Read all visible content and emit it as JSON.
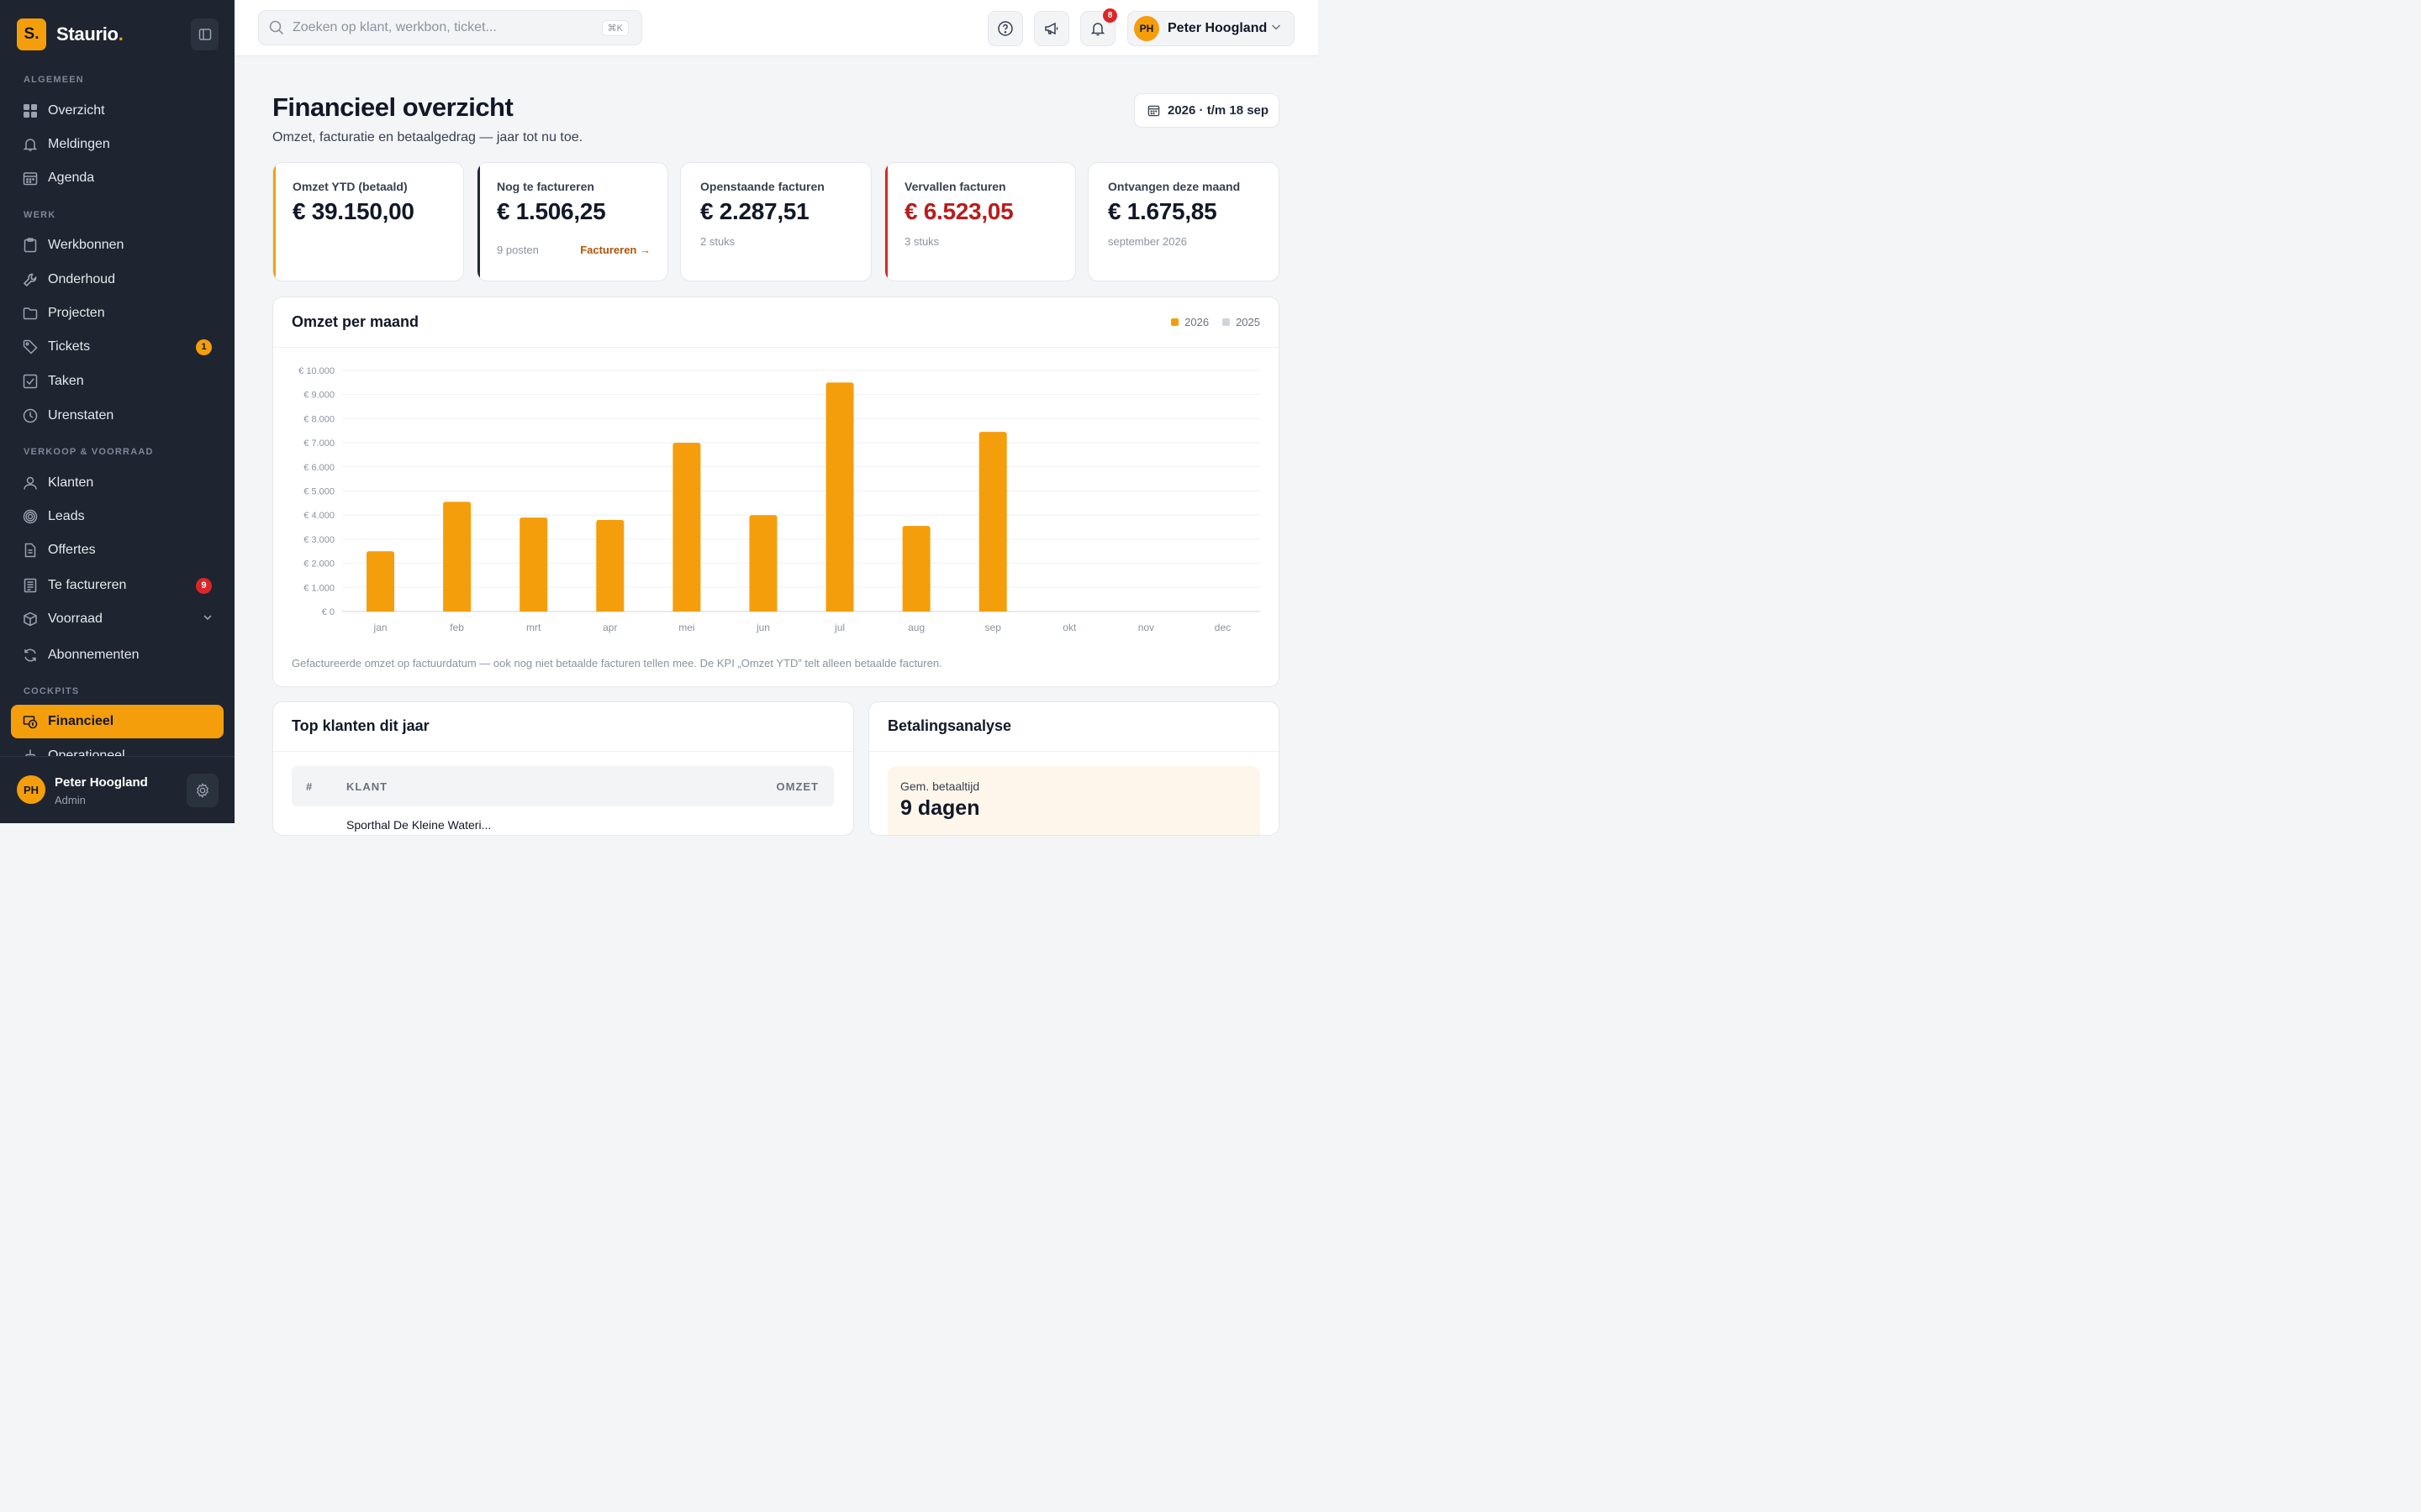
{
  "brand": {
    "logo_letter": "S.",
    "name": "Staurio",
    "dot": ".",
    "accent_color": "#f59e0b"
  },
  "sidebar": {
    "sections": {
      "algemeen": "ALGEMEEN",
      "werk": "WERK",
      "verkoop": "VERKOOP & VOORRAAD",
      "cockpits": "COCKPITS"
    },
    "items": {
      "overzicht": {
        "label": "Overzicht",
        "icon": "grid-icon"
      },
      "meldingen": {
        "label": "Meldingen",
        "icon": "bell-icon"
      },
      "agenda": {
        "label": "Agenda",
        "icon": "calendar-icon"
      },
      "werkbonnen": {
        "label": "Werkbonnen",
        "icon": "clipboard-icon"
      },
      "onderhoud": {
        "label": "Onderhoud",
        "icon": "wrench-icon"
      },
      "projecten": {
        "label": "Projecten",
        "icon": "folder-icon"
      },
      "tickets": {
        "label": "Tickets",
        "icon": "tag-icon",
        "badge": "1"
      },
      "taken": {
        "label": "Taken",
        "icon": "checkbox-icon"
      },
      "urenstaten": {
        "label": "Urenstaten",
        "icon": "clock-icon"
      },
      "klanten": {
        "label": "Klanten",
        "icon": "user-icon"
      },
      "leads": {
        "label": "Leads",
        "icon": "target-icon"
      },
      "offertes": {
        "label": "Offertes",
        "icon": "document-icon"
      },
      "te_factureren": {
        "label": "Te factureren",
        "icon": "receipt-icon",
        "badge": "9"
      },
      "voorraad": {
        "label": "Voorraad",
        "icon": "box-icon"
      },
      "abonnementen": {
        "label": "Abonnementen",
        "icon": "refresh-icon"
      },
      "financieel": {
        "label": "Financieel",
        "icon": "money-icon"
      },
      "operationeel": {
        "label": "Operationeel",
        "icon": "operations-icon"
      }
    },
    "footer": {
      "initials": "PH",
      "name": "Peter Hoogland",
      "role": "Admin"
    }
  },
  "topbar": {
    "search_placeholder": "Zoeken op klant, werkbon, ticket...",
    "search_shortcut": "⌘K",
    "notification_count": "8",
    "user": {
      "initials": "PH",
      "name": "Peter Hoogland"
    }
  },
  "page": {
    "title": "Financieel overzicht",
    "subtitle": "Omzet, facturatie en betaalgedrag — jaar tot nu toe.",
    "date_range": "2026 · t/m 18 sep"
  },
  "kpis": [
    {
      "label": "Omzet YTD (betaald)",
      "value": "€ 39.150,00",
      "meta": "",
      "accent": "#f59e0b"
    },
    {
      "label": "Nog te factureren",
      "value": "€ 1.506,25",
      "meta": "9 posten",
      "link": "Factureren →",
      "accent": "#1f2937"
    },
    {
      "label": "Openstaande facturen",
      "value": "€ 2.287,51",
      "meta": "2 stuks",
      "accent": ""
    },
    {
      "label": "Vervallen facturen",
      "value": "€ 6.523,05",
      "meta": "3 stuks",
      "accent": "#dc2626"
    },
    {
      "label": "Ontvangen deze maand",
      "value": "€ 1.675,85",
      "meta": "september 2026",
      "accent": ""
    }
  ],
  "chart_card": {
    "title": "Omzet per maand",
    "note": "Gefactureerde omzet op factuurdatum — ook nog niet betaalde facturen tellen mee. De KPI „Omzet YTD” telt alleen betaalde facturen."
  },
  "chart_data": {
    "type": "bar",
    "categories": [
      "jan",
      "feb",
      "mrt",
      "apr",
      "mei",
      "jun",
      "jul",
      "aug",
      "sep",
      "okt",
      "nov",
      "dec"
    ],
    "series": [
      {
        "name": "2026",
        "color": "#f59e0b",
        "values": [
          2500,
          4550,
          3900,
          3800,
          7000,
          4000,
          9500,
          3550,
          7450,
          null,
          null,
          null
        ]
      },
      {
        "name": "2025",
        "color": "#d1d5db",
        "values": [
          null,
          null,
          null,
          null,
          null,
          null,
          null,
          null,
          null,
          null,
          null,
          null
        ]
      }
    ],
    "y_ticks": [
      "€ 0",
      "€ 1.000",
      "€ 2.000",
      "€ 3.000",
      "€ 4.000",
      "€ 5.000",
      "€ 6.000",
      "€ 7.000",
      "€ 8.000",
      "€ 9.000",
      "€ 10.000"
    ],
    "ylim": [
      0,
      10000
    ],
    "grid": true,
    "legend_position": "top-right"
  },
  "top_klanten": {
    "title": "Top klanten dit jaar",
    "columns": {
      "rank": "#",
      "klant": "KLANT",
      "omzet": "OMZET"
    },
    "rows": [
      {
        "klant": "Sporthal De Kleine Wateri..."
      }
    ]
  },
  "betalingsanalyse": {
    "title": "Betalingsanalyse",
    "avg_label": "Gem. betaaltijd",
    "avg_value": "9 dagen"
  }
}
